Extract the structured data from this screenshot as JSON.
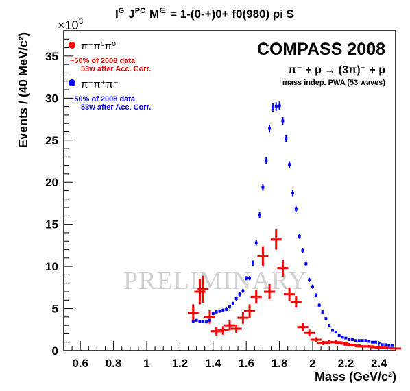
{
  "title": "Iᴳ Jᴾᶜ M∈ = 1-(0-+)0+ f0(980) pi S",
  "title_parts": {
    "prefix_I": "I",
    "sup_G": "G",
    "J": "J",
    "sup_PC": "PC",
    "M": "M",
    "sup_eps": "∈",
    "rest": "= 1-(0-+)0+ f0(980) pi S"
  },
  "experiment": "COMPASS 2008",
  "reaction": "π⁻ + p → (3π)⁻ + p",
  "analysis": "mass indep. PWA (53 waves)",
  "watermark": "PRELIMINARY",
  "y_multiplier": "×10",
  "y_multiplier_exp": "3",
  "colors": {
    "neutral": "#ff0000",
    "charged": "#0000ff",
    "axis": "#000000",
    "watermark": "#d2d2d2"
  },
  "chart_data": {
    "type": "scatter",
    "xlabel": "Mass (GeV/c²)",
    "ylabel": "Events / (40 MeV/c²)",
    "xlim": [
      0.5,
      2.5
    ],
    "ylim": [
      0,
      38
    ],
    "y_units_scale": "×10³",
    "x_ticks": [
      0.6,
      0.8,
      1,
      1.2,
      1.4,
      1.6,
      1.8,
      2,
      2.2,
      2.4
    ],
    "x_tick_labels": [
      "0.6",
      "0.8",
      "1",
      "1.2",
      "1.4",
      "1.6",
      "1.8",
      "2",
      "2.2",
      "2.4"
    ],
    "y_ticks": [
      0,
      5,
      10,
      15,
      20,
      25,
      30,
      35
    ],
    "y_tick_labels": [
      "0",
      "5",
      "10",
      "15",
      "20",
      "25",
      "30",
      "35"
    ],
    "legend_placement": "top-left",
    "series": [
      {
        "name": "π⁻π⁰π⁰",
        "note_line1": "~50% of 2008 data",
        "note_line2": "53w after Acc. Corr.",
        "color": "#ff0000",
        "x": [
          1.28,
          1.32,
          1.34,
          1.38,
          1.42,
          1.46,
          1.5,
          1.54,
          1.58,
          1.62,
          1.66,
          1.7,
          1.74,
          1.78,
          1.82,
          1.86,
          1.9,
          1.94,
          1.98,
          2.02,
          2.06,
          2.1,
          2.14,
          2.18,
          2.22,
          2.26,
          2.3,
          2.34,
          2.38,
          2.42,
          2.46,
          2.5
        ],
        "y": [
          4.5,
          7.0,
          7.3,
          4.0,
          2.3,
          2.4,
          3.0,
          2.6,
          3.9,
          4.7,
          6.4,
          11.2,
          7.0,
          13.2,
          9.8,
          6.7,
          5.8,
          2.8,
          2.1,
          1.3,
          0.9,
          1.0,
          1.0,
          0.9,
          0.7,
          0.6,
          0.5,
          0.5,
          0.4,
          0.35,
          0.3,
          0.25
        ],
        "y_err": [
          1.0,
          1.5,
          1.6,
          0.8,
          0.5,
          0.5,
          0.6,
          0.5,
          0.7,
          0.8,
          0.8,
          1.2,
          0.9,
          1.2,
          1.0,
          0.8,
          0.7,
          0.5,
          0.4,
          0.3,
          0.25,
          0.25,
          0.25,
          0.2,
          0.2,
          0.2,
          0.15,
          0.15,
          0.15,
          0.15,
          0.1,
          0.1
        ]
      },
      {
        "name": "π⁻π⁺π⁻",
        "note_line1": "~50% of 2008 data",
        "note_line2": "53w after Acc. Corr.",
        "color": "#0000ff",
        "x": [
          1.28,
          1.3,
          1.32,
          1.34,
          1.36,
          1.38,
          1.4,
          1.42,
          1.44,
          1.46,
          1.48,
          1.5,
          1.52,
          1.54,
          1.56,
          1.58,
          1.6,
          1.62,
          1.64,
          1.66,
          1.68,
          1.7,
          1.72,
          1.74,
          1.76,
          1.78,
          1.8,
          1.82,
          1.84,
          1.86,
          1.88,
          1.9,
          1.92,
          1.94,
          1.96,
          1.98,
          2.0,
          2.02,
          2.04,
          2.06,
          2.08,
          2.1,
          2.12,
          2.14,
          2.16,
          2.18,
          2.2,
          2.22,
          2.24,
          2.26,
          2.28,
          2.3,
          2.32,
          2.34,
          2.36,
          2.38,
          2.4,
          2.42,
          2.44,
          2.46,
          2.48
        ],
        "y": [
          3.5,
          3.6,
          3.5,
          3.5,
          3.4,
          3.6,
          4.4,
          4.6,
          4.7,
          4.8,
          4.9,
          5.2,
          5.6,
          6.2,
          6.7,
          7.1,
          8.6,
          8.6,
          10.4,
          12.8,
          16.1,
          19.4,
          22.6,
          26.4,
          28.9,
          29.0,
          29.1,
          27.3,
          25.2,
          22.1,
          18.7,
          16.8,
          13.6,
          11.9,
          10.3,
          8.4,
          7.6,
          6.6,
          5.4,
          4.6,
          3.8,
          3.0,
          2.4,
          2.2,
          1.8,
          1.6,
          1.5,
          1.3,
          1.3,
          1.2,
          1.2,
          1.2,
          1.2,
          1.1,
          1.0,
          1.0,
          0.9,
          0.7,
          0.7,
          0.6,
          0.6
        ],
        "y_err": [
          0.15,
          0.15,
          0.15,
          0.15,
          0.15,
          0.15,
          0.2,
          0.2,
          0.2,
          0.2,
          0.2,
          0.2,
          0.2,
          0.25,
          0.25,
          0.25,
          0.25,
          0.25,
          0.3,
          0.3,
          0.35,
          0.4,
          0.4,
          0.45,
          0.5,
          0.5,
          0.5,
          0.45,
          0.45,
          0.4,
          0.35,
          0.35,
          0.3,
          0.3,
          0.3,
          0.25,
          0.25,
          0.2,
          0.2,
          0.2,
          0.2,
          0.15,
          0.15,
          0.15,
          0.15,
          0.15,
          0.15,
          0.1,
          0.1,
          0.1,
          0.1,
          0.1,
          0.1,
          0.1,
          0.1,
          0.1,
          0.1,
          0.1,
          0.1,
          0.1,
          0.1
        ]
      }
    ]
  }
}
